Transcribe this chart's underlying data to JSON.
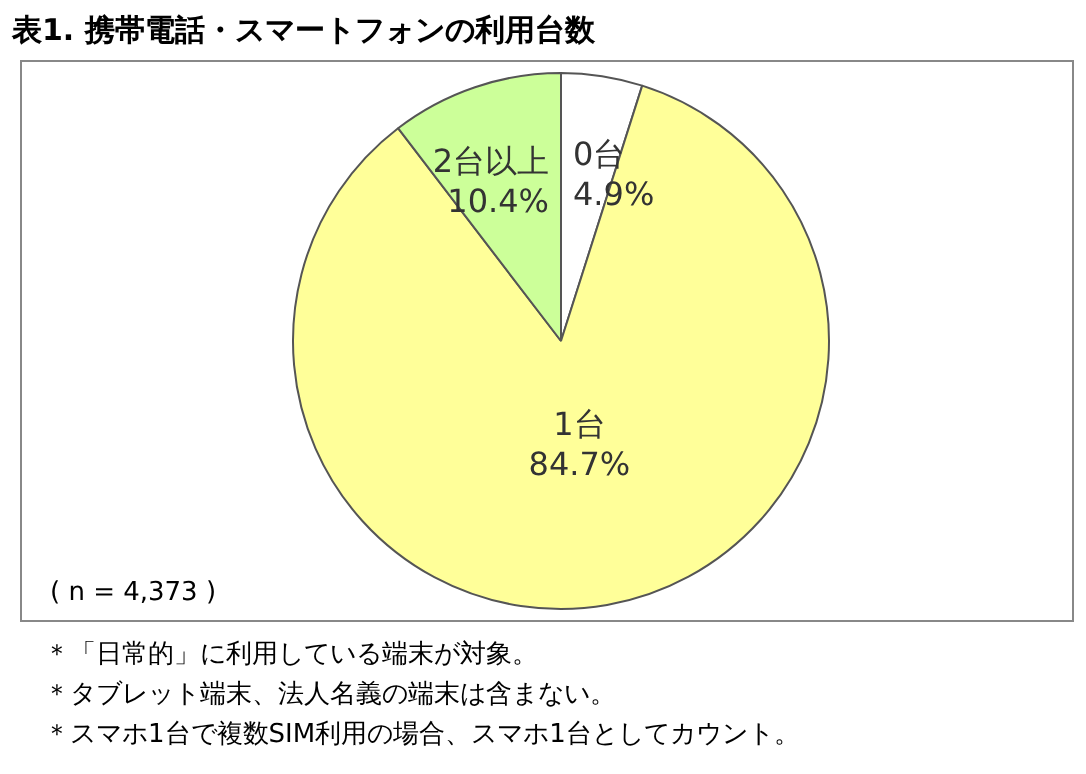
{
  "chart_data": {
    "type": "pie",
    "title": "表1.  携帯電話・スマートフォンの利用台数",
    "categories": [
      "0台",
      "1台",
      "2台以上"
    ],
    "values": [
      4.9,
      84.7,
      10.4
    ],
    "colors": [
      "#ffffff",
      "#ffff99",
      "#ccff99"
    ],
    "value_labels": [
      "4.9%",
      "84.7%",
      "10.4%"
    ],
    "legend": false,
    "annotations": [
      "( n = 4,373 )",
      "＊「日常的」に利用している端末が対象。",
      "＊タブレット端末、法人名義の端末は含まない。",
      "＊スマホ1台で複数SIM利用の場合、スマホ1台としてカウント。"
    ]
  }
}
